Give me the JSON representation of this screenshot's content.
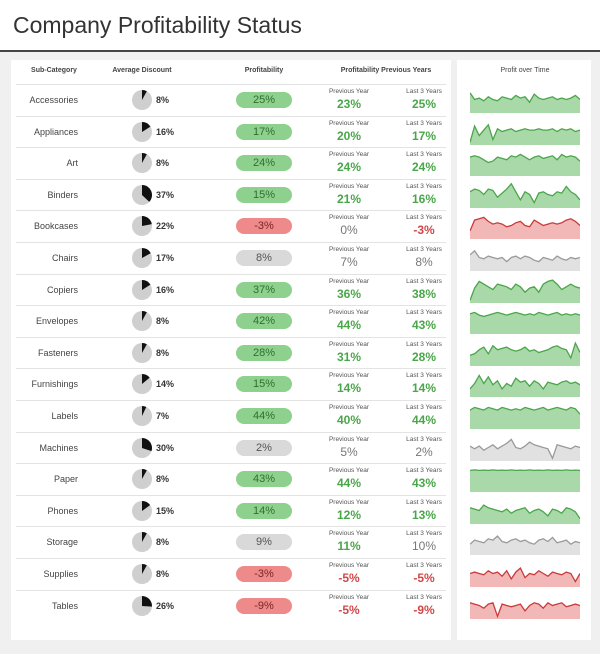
{
  "title": "Company Profitability Status",
  "columns": {
    "sub_category": "Sub-Category",
    "average_discount": "Average Discount",
    "profitability": "Profitability",
    "profitability_previous": "Profitability Previous Years",
    "profit_over_time": "Profit over Time"
  },
  "colors": {
    "green": "#8ed08e",
    "red": "#ef8a8a",
    "gray": "#d9d9d9"
  },
  "rows": [
    {
      "name": "Accessories",
      "discount": "8%",
      "discount_pct": 8,
      "profit": "25%",
      "status": "green",
      "prev_label": "Previous Year",
      "prev": "23%",
      "prev_status": "green",
      "last3_label": "Last 3 Years",
      "last3": "25%",
      "last3_status": "green",
      "trend": [
        0.75,
        0.5,
        0.55,
        0.45,
        0.6,
        0.5,
        0.45,
        0.6,
        0.55,
        0.5,
        0.65,
        0.55,
        0.6,
        0.4,
        0.7,
        0.55,
        0.5,
        0.55,
        0.6,
        0.5,
        0.55,
        0.5,
        0.55,
        0.65,
        0.5
      ]
    },
    {
      "name": "Appliances",
      "discount": "16%",
      "discount_pct": 16,
      "profit": "17%",
      "status": "green",
      "prev_label": "Previous Year",
      "prev": "20%",
      "prev_status": "green",
      "last3_label": "Last 3 Years",
      "last3": "17%",
      "last3_status": "green",
      "trend": [
        0.1,
        0.7,
        0.35,
        0.55,
        0.75,
        0.2,
        0.6,
        0.5,
        0.55,
        0.6,
        0.5,
        0.55,
        0.6,
        0.55,
        0.55,
        0.6,
        0.55,
        0.55,
        0.6,
        0.5,
        0.6,
        0.55,
        0.6,
        0.5,
        0.55
      ]
    },
    {
      "name": "Art",
      "discount": "8%",
      "discount_pct": 8,
      "profit": "24%",
      "status": "green",
      "prev_label": "Previous Year",
      "prev": "24%",
      "prev_status": "green",
      "last3_label": "Last 3 Years",
      "last3": "24%",
      "last3_status": "green",
      "trend": [
        0.7,
        0.75,
        0.7,
        0.6,
        0.5,
        0.55,
        0.7,
        0.65,
        0.6,
        0.75,
        0.7,
        0.8,
        0.7,
        0.6,
        0.7,
        0.75,
        0.65,
        0.7,
        0.75,
        0.6,
        0.8,
        0.7,
        0.75,
        0.7,
        0.55
      ]
    },
    {
      "name": "Binders",
      "discount": "37%",
      "discount_pct": 37,
      "profit": "15%",
      "status": "green",
      "prev_label": "Previous Year",
      "prev": "21%",
      "prev_status": "green",
      "last3_label": "Last 3 Years",
      "last3": "16%",
      "last3_status": "green",
      "trend": [
        0.6,
        0.7,
        0.65,
        0.5,
        0.7,
        0.65,
        0.4,
        0.55,
        0.7,
        0.9,
        0.6,
        0.3,
        0.6,
        0.5,
        0.2,
        0.55,
        0.6,
        0.5,
        0.45,
        0.6,
        0.55,
        0.8,
        0.6,
        0.5,
        0.3
      ]
    },
    {
      "name": "Bookcases",
      "discount": "22%",
      "discount_pct": 22,
      "profit": "-3%",
      "status": "red",
      "prev_label": "Previous Year",
      "prev": "0%",
      "prev_status": "gray",
      "last3_label": "Last 3 Years",
      "last3": "-3%",
      "last3_status": "red",
      "trend": [
        0.3,
        0.7,
        0.75,
        0.8,
        0.65,
        0.55,
        0.6,
        0.55,
        0.45,
        0.5,
        0.6,
        0.65,
        0.5,
        0.45,
        0.7,
        0.6,
        0.5,
        0.55,
        0.6,
        0.55,
        0.6,
        0.7,
        0.75,
        0.65,
        0.5
      ]
    },
    {
      "name": "Chairs",
      "discount": "17%",
      "discount_pct": 17,
      "profit": "8%",
      "status": "gray",
      "prev_label": "Previous Year",
      "prev": "7%",
      "prev_status": "gray",
      "last3_label": "Last 3 Years",
      "last3": "8%",
      "last3_status": "gray",
      "trend": [
        0.6,
        0.75,
        0.5,
        0.45,
        0.55,
        0.5,
        0.45,
        0.5,
        0.35,
        0.5,
        0.55,
        0.45,
        0.55,
        0.5,
        0.4,
        0.35,
        0.5,
        0.45,
        0.4,
        0.55,
        0.45,
        0.4,
        0.5,
        0.45,
        0.5
      ]
    },
    {
      "name": "Copiers",
      "discount": "16%",
      "discount_pct": 16,
      "profit": "37%",
      "status": "green",
      "prev_label": "Previous Year",
      "prev": "36%",
      "prev_status": "green",
      "last3_label": "Last 3 Years",
      "last3": "38%",
      "last3_status": "green",
      "trend": [
        0.1,
        0.55,
        0.8,
        0.7,
        0.6,
        0.5,
        0.7,
        0.65,
        0.6,
        0.5,
        0.7,
        0.6,
        0.4,
        0.55,
        0.6,
        0.4,
        0.7,
        0.8,
        0.85,
        0.7,
        0.5,
        0.6,
        0.7,
        0.6,
        0.55
      ]
    },
    {
      "name": "Envelopes",
      "discount": "8%",
      "discount_pct": 8,
      "profit": "42%",
      "status": "green",
      "prev_label": "Previous Year",
      "prev": "44%",
      "prev_status": "green",
      "last3_label": "Last 3 Years",
      "last3": "43%",
      "last3_status": "green",
      "trend": [
        0.75,
        0.8,
        0.7,
        0.65,
        0.7,
        0.75,
        0.8,
        0.75,
        0.7,
        0.75,
        0.8,
        0.75,
        0.7,
        0.75,
        0.7,
        0.8,
        0.75,
        0.7,
        0.75,
        0.8,
        0.7,
        0.75,
        0.7,
        0.75,
        0.7
      ]
    },
    {
      "name": "Fasteners",
      "discount": "8%",
      "discount_pct": 8,
      "profit": "28%",
      "status": "green",
      "prev_label": "Previous Year",
      "prev": "31%",
      "prev_status": "green",
      "last3_label": "Last 3 Years",
      "last3": "28%",
      "last3_status": "green",
      "trend": [
        0.4,
        0.45,
        0.6,
        0.7,
        0.45,
        0.75,
        0.6,
        0.65,
        0.7,
        0.6,
        0.55,
        0.6,
        0.7,
        0.55,
        0.6,
        0.5,
        0.55,
        0.6,
        0.7,
        0.75,
        0.65,
        0.6,
        0.3,
        0.85,
        0.5
      ]
    },
    {
      "name": "Furnishings",
      "discount": "14%",
      "discount_pct": 14,
      "profit": "15%",
      "status": "green",
      "prev_label": "Previous Year",
      "prev": "14%",
      "prev_status": "green",
      "last3_label": "Last 3 Years",
      "last3": "14%",
      "last3_status": "green",
      "trend": [
        0.3,
        0.5,
        0.8,
        0.5,
        0.75,
        0.45,
        0.6,
        0.3,
        0.5,
        0.4,
        0.7,
        0.55,
        0.6,
        0.4,
        0.6,
        0.5,
        0.3,
        0.55,
        0.5,
        0.45,
        0.55,
        0.6,
        0.5,
        0.55,
        0.45
      ]
    },
    {
      "name": "Labels",
      "discount": "7%",
      "discount_pct": 7,
      "profit": "44%",
      "status": "green",
      "prev_label": "Previous Year",
      "prev": "40%",
      "prev_status": "green",
      "last3_label": "Last 3 Years",
      "last3": "44%",
      "last3_status": "green",
      "trend": [
        0.7,
        0.8,
        0.75,
        0.7,
        0.8,
        0.75,
        0.7,
        0.8,
        0.75,
        0.7,
        0.75,
        0.7,
        0.8,
        0.75,
        0.7,
        0.75,
        0.8,
        0.7,
        0.75,
        0.8,
        0.75,
        0.7,
        0.8,
        0.75,
        0.55
      ]
    },
    {
      "name": "Machines",
      "discount": "30%",
      "discount_pct": 30,
      "profit": "2%",
      "status": "gray",
      "prev_label": "Previous Year",
      "prev": "5%",
      "prev_status": "gray",
      "last3_label": "Last 3 Years",
      "last3": "2%",
      "last3_status": "gray",
      "trend": [
        0.55,
        0.45,
        0.55,
        0.4,
        0.5,
        0.6,
        0.45,
        0.55,
        0.65,
        0.8,
        0.5,
        0.45,
        0.55,
        0.7,
        0.6,
        0.55,
        0.5,
        0.45,
        0.1,
        0.6,
        0.55,
        0.5,
        0.45,
        0.55,
        0.5
      ]
    },
    {
      "name": "Paper",
      "discount": "8%",
      "discount_pct": 8,
      "profit": "43%",
      "status": "green",
      "prev_label": "Previous Year",
      "prev": "44%",
      "prev_status": "green",
      "last3_label": "Last 3 Years",
      "last3": "43%",
      "last3_status": "green",
      "trend": [
        0.8,
        0.82,
        0.8,
        0.81,
        0.8,
        0.82,
        0.8,
        0.81,
        0.8,
        0.82,
        0.8,
        0.81,
        0.8,
        0.82,
        0.8,
        0.81,
        0.8,
        0.82,
        0.8,
        0.81,
        0.8,
        0.82,
        0.8,
        0.81,
        0.8
      ]
    },
    {
      "name": "Phones",
      "discount": "15%",
      "discount_pct": 15,
      "profit": "14%",
      "status": "green",
      "prev_label": "Previous Year",
      "prev": "12%",
      "prev_status": "green",
      "last3_label": "Last 3 Years",
      "last3": "13%",
      "last3_status": "green",
      "trend": [
        0.6,
        0.55,
        0.5,
        0.7,
        0.6,
        0.55,
        0.5,
        0.45,
        0.55,
        0.4,
        0.5,
        0.55,
        0.6,
        0.4,
        0.5,
        0.55,
        0.45,
        0.3,
        0.55,
        0.5,
        0.4,
        0.6,
        0.55,
        0.45,
        0.2
      ]
    },
    {
      "name": "Storage",
      "discount": "8%",
      "discount_pct": 8,
      "profit": "9%",
      "status": "gray",
      "prev_label": "Previous Year",
      "prev": "11%",
      "prev_status": "green",
      "last3_label": "Last 3 Years",
      "last3": "10%",
      "last3_status": "gray",
      "trend": [
        0.4,
        0.55,
        0.5,
        0.45,
        0.6,
        0.55,
        0.7,
        0.5,
        0.45,
        0.55,
        0.6,
        0.5,
        0.55,
        0.45,
        0.4,
        0.55,
        0.6,
        0.5,
        0.65,
        0.45,
        0.5,
        0.55,
        0.4,
        0.5,
        0.45
      ]
    },
    {
      "name": "Supplies",
      "discount": "8%",
      "discount_pct": 8,
      "profit": "-3%",
      "status": "red",
      "prev_label": "Previous Year",
      "prev": "-5%",
      "prev_status": "red",
      "last3_label": "Last 3 Years",
      "last3": "-5%",
      "last3_status": "red",
      "trend": [
        0.5,
        0.55,
        0.5,
        0.45,
        0.6,
        0.5,
        0.55,
        0.4,
        0.6,
        0.3,
        0.55,
        0.7,
        0.35,
        0.5,
        0.45,
        0.6,
        0.5,
        0.4,
        0.55,
        0.5,
        0.45,
        0.55,
        0.5,
        0.2,
        0.5
      ]
    },
    {
      "name": "Tables",
      "discount": "26%",
      "discount_pct": 26,
      "profit": "-9%",
      "status": "red",
      "prev_label": "Previous Year",
      "prev": "-5%",
      "prev_status": "red",
      "last3_label": "Last 3 Years",
      "last3": "-9%",
      "last3_status": "red",
      "trend": [
        0.6,
        0.55,
        0.5,
        0.4,
        0.55,
        0.6,
        0.1,
        0.55,
        0.5,
        0.45,
        0.5,
        0.55,
        0.3,
        0.5,
        0.6,
        0.55,
        0.4,
        0.6,
        0.5,
        0.55,
        0.6,
        0.45,
        0.5,
        0.55,
        0.5
      ]
    }
  ]
}
